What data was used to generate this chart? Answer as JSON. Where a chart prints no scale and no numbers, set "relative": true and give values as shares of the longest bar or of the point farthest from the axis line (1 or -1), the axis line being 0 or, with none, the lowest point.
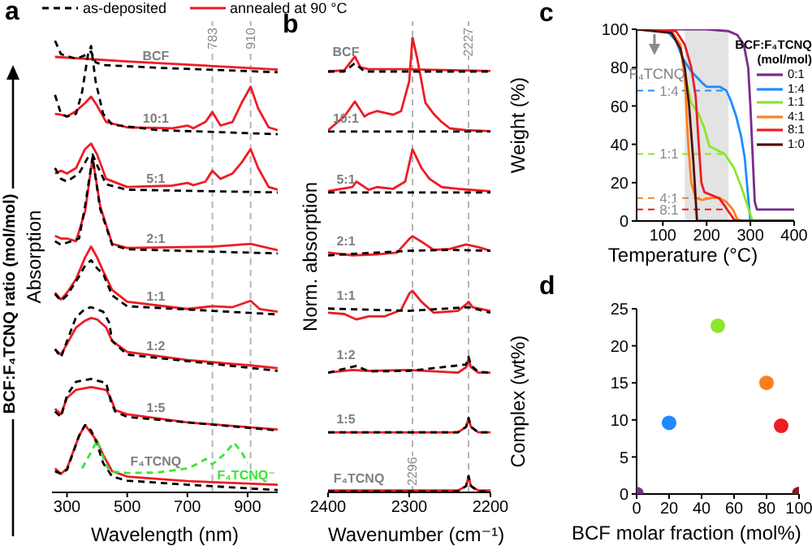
{
  "chart_data": [
    {
      "type": "line",
      "title": "a",
      "xlabel": "Wavelength (nm)",
      "ylabel": "Absorption",
      "relative": true,
      "xlim": [
        250,
        1000
      ],
      "xticks": [
        300,
        500,
        700,
        900
      ],
      "legend": "top",
      "marker": "none",
      "line_style": "solid",
      "series": [
        {
          "name": "as-deposited",
          "color": "#000000",
          "line_style": "dashed",
          "x": [
            260,
            280,
            330,
            370,
            380,
            395,
            420,
            600,
            1000
          ],
          "values": [
            1,
            0.97,
            0.96,
            0.97,
            0.976,
            0.952,
            0.946,
            0.94,
            0.93
          ]
        },
        {
          "name": "annealed at 90 °C",
          "color": "#ee1c25",
          "x": [
            260,
            500,
            1000
          ],
          "values": [
            0.964,
            0.954,
            0.936
          ]
        },
        {
          "color": "#000000",
          "line_style": "dashed",
          "x": [
            260,
            280,
            300,
            330,
            350,
            370,
            380,
            395,
            420,
            450,
            600,
            1000
          ],
          "values": [
            0.88,
            0.838,
            0.832,
            0.838,
            0.886,
            0.97,
            0.988,
            0.91,
            0.838,
            0.814,
            0.802,
            0.793
          ]
        },
        {
          "color": "#ee1c25",
          "x": [
            260,
            280,
            300,
            330,
            360,
            380,
            400,
            430,
            500,
            650,
            700,
            720,
            760,
            783,
            810,
            850,
            880,
            910,
            935,
            970,
            1000
          ],
          "values": [
            0.838,
            0.836,
            0.832,
            0.844,
            0.862,
            0.876,
            0.856,
            0.82,
            0.808,
            0.806,
            0.812,
            0.806,
            0.82,
            0.842,
            0.812,
            0.82,
            0.862,
            0.898,
            0.85,
            0.808,
            0.802
          ]
        },
        {
          "color": "#000000",
          "line_style": "dashed",
          "x": [
            260,
            280,
            300,
            340,
            370,
            385,
            400,
            430,
            500,
            1000
          ],
          "values": [
            0.718,
            0.694,
            0.688,
            0.706,
            0.742,
            0.748,
            0.724,
            0.682,
            0.67,
            0.664
          ]
        },
        {
          "color": "#ee1c25",
          "x": [
            260,
            280,
            300,
            330,
            360,
            380,
            400,
            430,
            500,
            650,
            700,
            720,
            760,
            783,
            810,
            850,
            880,
            910,
            935,
            970,
            1000
          ],
          "values": [
            0.706,
            0.712,
            0.706,
            0.718,
            0.76,
            0.772,
            0.748,
            0.694,
            0.676,
            0.679,
            0.685,
            0.68,
            0.688,
            0.712,
            0.694,
            0.706,
            0.73,
            0.76,
            0.718,
            0.676,
            0.67
          ]
        },
        {
          "color": "#000000",
          "line_style": "dashed",
          "x": [
            260,
            280,
            340,
            360,
            385,
            410,
            450,
            500,
            1000
          ],
          "values": [
            0.556,
            0.548,
            0.562,
            0.634,
            0.742,
            0.628,
            0.548,
            0.538,
            0.529
          ]
        },
        {
          "color": "#ee1c25",
          "x": [
            260,
            280,
            300,
            330,
            360,
            385,
            410,
            450,
            500,
            783,
            910,
            1000
          ],
          "values": [
            0.568,
            0.562,
            0.562,
            0.556,
            0.622,
            0.74,
            0.634,
            0.55,
            0.541,
            0.544,
            0.55,
            0.536
          ]
        },
        {
          "color": "#000000",
          "line_style": "dashed",
          "x": [
            260,
            280,
            300,
            340,
            360,
            380,
            400,
            420,
            450,
            500,
            1000
          ],
          "values": [
            0.439,
            0.424,
            0.436,
            0.478,
            0.502,
            0.514,
            0.496,
            0.484,
            0.436,
            0.412,
            0.394
          ]
        },
        {
          "color": "#ee1c25",
          "x": [
            260,
            280,
            300,
            330,
            360,
            380,
            400,
            420,
            450,
            500,
            700,
            783,
            850,
            910,
            940,
            1000
          ],
          "values": [
            0.442,
            0.427,
            0.442,
            0.472,
            0.52,
            0.544,
            0.52,
            0.49,
            0.448,
            0.422,
            0.406,
            0.412,
            0.41,
            0.424,
            0.406,
            0.4
          ]
        },
        {
          "color": "#000000",
          "line_style": "dashed",
          "x": [
            260,
            280,
            300,
            330,
            360,
            380,
            420,
            440,
            450,
            500,
            1000
          ],
          "values": [
            0.317,
            0.299,
            0.335,
            0.388,
            0.406,
            0.41,
            0.4,
            0.376,
            0.335,
            0.305,
            0.269
          ]
        },
        {
          "color": "#ee1c25",
          "x": [
            260,
            280,
            300,
            330,
            360,
            380,
            400,
            430,
            450,
            500,
            700,
            910,
            1000
          ],
          "values": [
            0.317,
            0.305,
            0.329,
            0.365,
            0.38,
            0.386,
            0.383,
            0.365,
            0.335,
            0.311,
            0.293,
            0.281,
            0.275
          ]
        },
        {
          "color": "#000000",
          "line_style": "dashed",
          "x": [
            260,
            280,
            300,
            330,
            380,
            430,
            445,
            460,
            500,
            1000
          ],
          "values": [
            0.179,
            0.167,
            0.215,
            0.245,
            0.251,
            0.242,
            0.203,
            0.179,
            0.167,
            0.137
          ]
        },
        {
          "color": "#ee1c25",
          "x": [
            260,
            280,
            300,
            330,
            380,
            430,
            445,
            460,
            500,
            700,
            1000
          ],
          "values": [
            0.185,
            0.173,
            0.209,
            0.227,
            0.233,
            0.227,
            0.209,
            0.182,
            0.173,
            0.155,
            0.139
          ]
        },
        {
          "color": "#000000",
          "line_style": "dashed",
          "x": [
            260,
            280,
            300,
            340,
            360,
            380,
            400,
            420,
            450,
            500,
            700,
            1000
          ],
          "values": [
            0.047,
            0.041,
            0.05,
            0.125,
            0.149,
            0.137,
            0.107,
            0.065,
            0.035,
            0.026,
            0.017,
            0.005
          ]
        },
        {
          "color": "#ee1c25",
          "x": [
            260,
            280,
            300,
            340,
            360,
            380,
            400,
            420,
            450,
            500,
            700,
            1000
          ],
          "values": [
            0.053,
            0.041,
            0.053,
            0.125,
            0.149,
            0.131,
            0.113,
            0.083,
            0.047,
            0.035,
            0.025,
            0.017
          ]
        },
        {
          "color": "#39e639",
          "line_style": "dashed",
          "x": [
            350,
            380,
            400,
            420,
            440,
            500,
            600,
            700,
            740,
            760,
            783,
            820,
            855,
            880,
            900
          ],
          "values": [
            0.053,
            0.089,
            0.115,
            0.077,
            0.047,
            0.043,
            0.044,
            0.053,
            0.065,
            0.074,
            0.062,
            0.083,
            0.11,
            0.089,
            0.065
          ]
        }
      ],
      "ref_lines": [
        {
          "axis": "x",
          "value": 783,
          "label": "783",
          "color": "#b4b4b4",
          "line_style": "dashed"
        },
        {
          "axis": "x",
          "value": 910,
          "label": "910",
          "color": "#b4b4b4",
          "line_style": "dashed"
        }
      ],
      "annotations": [
        "BCF:F₄TCNQ ratio (mol/mol)",
        "BCF",
        "10:1",
        "5:1",
        "2:1",
        "1:1",
        "1:2",
        "1:5",
        "F₄TCNQ",
        "F₄TCNQ⁻"
      ]
    },
    {
      "type": "line",
      "title": "b",
      "xlabel": "Wavenumber (cm⁻¹)",
      "ylabel": "Norm. absorption",
      "relative": true,
      "xlim": [
        2400,
        2200
      ],
      "xticks": [
        2400,
        2300,
        2200
      ],
      "marker": "none",
      "line_style": "solid",
      "series": [
        {
          "color": "#000000",
          "line_style": "dashed",
          "x": [
            2400,
            2380,
            2367,
            2355,
            2200
          ],
          "values": [
            0.925,
            0.925,
            0.943,
            0.925,
            0.925
          ]
        },
        {
          "color": "#ee1c25",
          "x": [
            2400,
            2380,
            2367,
            2360,
            2350,
            2300,
            2200
          ],
          "values": [
            0.925,
            0.928,
            0.958,
            0.934,
            0.93,
            0.93,
            0.926
          ]
        },
        {
          "color": "#000000",
          "line_style": "dashed",
          "x": [
            2400,
            2200
          ],
          "values": [
            0.793,
            0.793
          ]
        },
        {
          "color": "#ee1c25",
          "x": [
            2400,
            2380,
            2367,
            2355,
            2350,
            2340,
            2320,
            2310,
            2300,
            2296,
            2290,
            2280,
            2270,
            2260,
            2250,
            2230,
            2200
          ],
          "values": [
            0.796,
            0.826,
            0.859,
            0.826,
            0.832,
            0.838,
            0.83,
            0.838,
            0.904,
            1,
            0.952,
            0.856,
            0.832,
            0.814,
            0.8,
            0.796,
            0.794
          ]
        },
        {
          "color": "#000000",
          "line_style": "dashed",
          "x": [
            2400,
            2200
          ],
          "values": [
            0.659,
            0.659
          ]
        },
        {
          "color": "#ee1c25",
          "x": [
            2400,
            2370,
            2365,
            2350,
            2340,
            2320,
            2305,
            2296,
            2285,
            2275,
            2260,
            2240,
            2200
          ],
          "values": [
            0.662,
            0.671,
            0.683,
            0.665,
            0.671,
            0.667,
            0.683,
            0.754,
            0.713,
            0.689,
            0.671,
            0.667,
            0.662
          ]
        },
        {
          "color": "#000000",
          "line_style": "dashed",
          "x": [
            2400,
            2300,
            2250,
            2200
          ],
          "values": [
            0.521,
            0.531,
            0.533,
            0.531
          ]
        },
        {
          "color": "#ee1c25",
          "x": [
            2400,
            2370,
            2340,
            2315,
            2300,
            2296,
            2285,
            2270,
            2250,
            2230,
            2215,
            2200
          ],
          "values": [
            0.527,
            0.521,
            0.523,
            0.527,
            0.557,
            0.563,
            0.551,
            0.533,
            0.535,
            0.545,
            0.539,
            0.531
          ]
        },
        {
          "color": "#000000",
          "line_style": "dashed",
          "x": [
            2400,
            2300,
            2227,
            2200
          ],
          "values": [
            0.404,
            0.399,
            0.407,
            0.395
          ]
        },
        {
          "color": "#ee1c25",
          "x": [
            2400,
            2380,
            2365,
            2350,
            2330,
            2310,
            2300,
            2296,
            2285,
            2270,
            2240,
            2230,
            2227,
            2222,
            2200
          ],
          "values": [
            0.395,
            0.392,
            0.38,
            0.387,
            0.387,
            0.401,
            0.437,
            0.443,
            0.419,
            0.395,
            0.399,
            0.413,
            0.419,
            0.407,
            0.399
          ]
        },
        {
          "color": "#000000",
          "line_style": "dashed",
          "x": [
            2400,
            2365,
            2350,
            2300,
            2230,
            2227,
            2224,
            2215,
            2200
          ],
          "values": [
            0.263,
            0.278,
            0.266,
            0.267,
            0.281,
            0.298,
            0.279,
            0.265,
            0.263
          ]
        },
        {
          "color": "#ee1c25",
          "x": [
            2400,
            2370,
            2350,
            2300,
            2240,
            2230,
            2227,
            2224,
            2215,
            2200
          ],
          "values": [
            0.263,
            0.269,
            0.267,
            0.269,
            0.263,
            0.275,
            0.293,
            0.275,
            0.263,
            0.263
          ]
        },
        {
          "color": "#000000",
          "line_style": "dashed",
          "x": [
            2400,
            2240,
            2230,
            2227,
            2224,
            2215,
            2200
          ],
          "values": [
            0.132,
            0.132,
            0.144,
            0.164,
            0.144,
            0.132,
            0.132
          ]
        },
        {
          "color": "#ee1c25",
          "x": [
            2400,
            2240,
            2230,
            2227,
            2224,
            2215,
            2200
          ],
          "values": [
            0.132,
            0.132,
            0.144,
            0.162,
            0.144,
            0.132,
            0.132
          ]
        },
        {
          "color": "#000000",
          "line_style": "dashed",
          "x": [
            2400,
            2240,
            2230,
            2227,
            2224,
            2215,
            2200
          ],
          "values": [
            0.002,
            0.002,
            0.014,
            0.036,
            0.014,
            0.002,
            0.002
          ]
        },
        {
          "color": "#ee1c25",
          "x": [
            2400,
            2240,
            2230,
            2227,
            2224,
            2215,
            2200
          ],
          "values": [
            0.004,
            0.004,
            0.014,
            0.034,
            0.014,
            0.004,
            0.004
          ]
        }
      ],
      "ref_lines": [
        {
          "axis": "x",
          "value": 2296,
          "label": "2296",
          "color": "#b4b4b4",
          "line_style": "dashed"
        },
        {
          "axis": "x",
          "value": 2227,
          "label": "2227",
          "color": "#b4b4b4",
          "line_style": "dashed"
        }
      ],
      "annotations": [
        "BCF",
        "10:1",
        "5:1",
        "2:1",
        "1:1",
        "1:2",
        "1:5",
        "F₄TCNQ"
      ]
    },
    {
      "type": "line",
      "title": "c",
      "xlabel": "Temperature (°C)",
      "ylabel": "Weight (%)",
      "xlim": [
        40,
        400
      ],
      "xticks": [
        100,
        200,
        300,
        400
      ],
      "ylim": [
        0,
        100
      ],
      "yticks": [
        0,
        20,
        40,
        60,
        80,
        100
      ],
      "legend": "top right",
      "legend_title": "BCF:F₄TCNQ (mol/mol)",
      "marker": "none",
      "line_style": "solid",
      "series": [
        {
          "name": "0:1",
          "color": "#7b2a8f",
          "x": [
            40,
            200,
            250,
            270,
            285,
            295,
            300,
            305,
            310,
            315,
            400
          ],
          "values": [
            100,
            100,
            99,
            97,
            92,
            80,
            60,
            35,
            10,
            6,
            6
          ]
        },
        {
          "name": "1:4",
          "color": "#1e8cff",
          "x": [
            40,
            110,
            130,
            145,
            165,
            190,
            200,
            230,
            245,
            255,
            267,
            279,
            287,
            294,
            300,
            400
          ],
          "values": [
            100,
            99,
            94,
            85,
            78,
            72,
            70,
            70,
            68,
            63,
            55,
            44,
            33,
            15,
            0,
            0
          ]
        },
        {
          "name": "1:1",
          "color": "#8ce62b",
          "x": [
            140,
            151,
            164,
            181,
            194,
            206,
            215,
            224,
            241,
            262,
            279,
            292,
            305,
            400
          ],
          "values": [
            90,
            76,
            62,
            56,
            49,
            39,
            38,
            37,
            35,
            28,
            18,
            9,
            0,
            0
          ]
        },
        {
          "name": "4:1",
          "color": "#ff7f1e",
          "x": [
            40,
            120,
            140,
            150,
            158,
            165,
            175,
            190,
            210,
            230,
            245,
            260,
            270,
            280,
            400
          ],
          "values": [
            100,
            99,
            92,
            75,
            40,
            20,
            12,
            11,
            12,
            12,
            10,
            6,
            1,
            0,
            0
          ]
        },
        {
          "name": "8:1",
          "color": "#ee1c25",
          "x": [
            40,
            130,
            150,
            165,
            175,
            182,
            188,
            195,
            228,
            241,
            250,
            262,
            270,
            400
          ],
          "values": [
            100,
            99,
            92,
            80,
            65,
            40,
            20,
            15,
            12,
            8,
            5,
            1,
            0,
            0
          ]
        },
        {
          "name": "1:0",
          "color": "#4d0e0e",
          "x": [
            40,
            120,
            140,
            150,
            160,
            170,
            178,
            400
          ],
          "values": [
            100,
            98,
            90,
            80,
            60,
            30,
            0,
            0
          ]
        }
      ],
      "bands": [
        {
          "axis": "x",
          "from": 150,
          "to": 250,
          "color": "#dcdcdc"
        }
      ],
      "ref_lines": [
        {
          "axis": "y",
          "value": 68,
          "color": "#1e8cff",
          "line_style": "dashed"
        },
        {
          "axis": "y",
          "value": 35,
          "color": "#8ce62b",
          "line_style": "dashed"
        },
        {
          "axis": "y",
          "value": 12,
          "color": "#ff7f1e",
          "line_style": "dashed"
        },
        {
          "axis": "y",
          "value": 6,
          "color": "#ee1c25",
          "line_style": "dashed"
        }
      ],
      "annotations": [
        "F₄TCNQ",
        "1:4",
        "1:1",
        "4:1",
        "8:1"
      ]
    },
    {
      "type": "scatter",
      "title": "d",
      "xlabel": "BCF molar fraction (mol%)",
      "ylabel": "Complex (wt%)",
      "xlim": [
        0,
        100
      ],
      "xticks": [
        0,
        20,
        40,
        60,
        80,
        100
      ],
      "ylim": [
        0,
        25
      ],
      "yticks": [
        0,
        5,
        10,
        15,
        20,
        25
      ],
      "marker": "circle",
      "x": [
        0,
        20,
        50,
        80,
        89,
        100
      ],
      "values": [
        0,
        9.6,
        22.7,
        15,
        9.2,
        0
      ],
      "colors": [
        "#7b2a8f",
        "#1e8cff",
        "#8ce62b",
        "#ff7f1e",
        "#ee1c25",
        "#8b1a1a"
      ]
    }
  ]
}
